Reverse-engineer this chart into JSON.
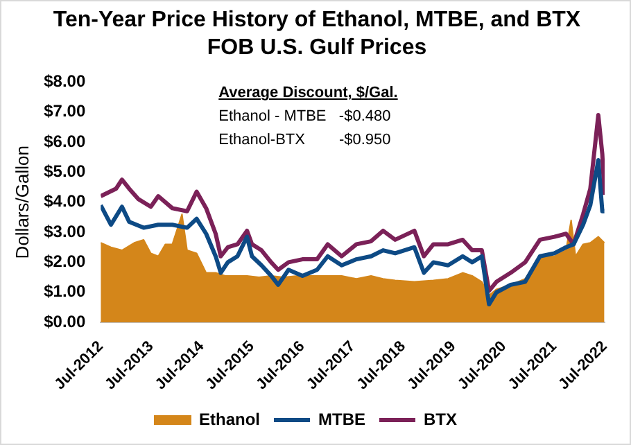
{
  "chart_data": {
    "type": "line",
    "title": "Ten-Year Price History of Ethanol, MTBE, and BTX FOB U.S. Gulf Prices",
    "ylabel": "Dollars/Gallon",
    "annotations": [
      "Average Discount, $/Gal.",
      "Ethanol - MTBE   -$0.480",
      "Ethanol-BTX        -$0.950"
    ],
    "xlim": [
      "2012-07-01",
      "2022-07-01"
    ],
    "xticks": [
      {
        "value": "2012-07-01",
        "label": "Jul-2012"
      },
      {
        "value": "2013-07-01",
        "label": "Jul-2013"
      },
      {
        "value": "2014-07-01",
        "label": "Jul-2014"
      },
      {
        "value": "2015-07-01",
        "label": "Jul-2015"
      },
      {
        "value": "2016-07-01",
        "label": "Jul-2016"
      },
      {
        "value": "2017-07-01",
        "label": "Jul-2017"
      },
      {
        "value": "2018-07-01",
        "label": "Jul-2018"
      },
      {
        "value": "2019-07-01",
        "label": "Jul-2019"
      },
      {
        "value": "2020-07-01",
        "label": "Jul-2020"
      },
      {
        "value": "2021-07-01",
        "label": "Jul-2021"
      },
      {
        "value": "2022-07-01",
        "label": "Jul-2022"
      }
    ],
    "ylim": [
      0,
      8
    ],
    "yticks": [
      {
        "value": 0,
        "label": "$0.00"
      },
      {
        "value": 1,
        "label": "$1.00"
      },
      {
        "value": 2,
        "label": "$2.00"
      },
      {
        "value": 3,
        "label": "$3.00"
      },
      {
        "value": 4,
        "label": "$4.00"
      },
      {
        "value": 5,
        "label": "$5.00"
      },
      {
        "value": 6,
        "label": "$6.00"
      },
      {
        "value": 7,
        "label": "$7.00"
      },
      {
        "value": 8,
        "label": "$8.00"
      }
    ],
    "grid": false,
    "legend": "bottom",
    "marker": "none",
    "series": [
      {
        "name": "Ethanol",
        "type": "area",
        "color": "#d4861a",
        "x": [
          "2012-07-01",
          "2012-09-13",
          "2012-12-02",
          "2013-03-01",
          "2013-05-08",
          "2013-06-29",
          "2013-08-22",
          "2013-10-12",
          "2013-12-02",
          "2014-02-10",
          "2014-03-19",
          "2014-05-27",
          "2014-08-04",
          "2014-10-12",
          "2014-12-20",
          "2015-03-01",
          "2015-05-27",
          "2015-08-22",
          "2015-11-18",
          "2016-02-14",
          "2016-05-31",
          "2016-10-16",
          "2017-01-01",
          "2017-04-12",
          "2017-07-28",
          "2017-11-11",
          "2018-02-06",
          "2018-05-05",
          "2018-09-21",
          "2019-02-06",
          "2019-05-23",
          "2019-09-06",
          "2019-11-14",
          "2020-01-23",
          "2020-03-15",
          "2020-05-08",
          "2020-08-19",
          "2020-12-02",
          "2021-03-19",
          "2021-07-02",
          "2021-09-24",
          "2021-10-31",
          "2021-12-02",
          "2022-01-26",
          "2022-03-19",
          "2022-05-16",
          "2022-06-29"
        ],
        "values": [
          2.65,
          2.5,
          2.4,
          2.65,
          2.75,
          2.3,
          2.2,
          2.6,
          2.6,
          3.6,
          2.4,
          2.3,
          1.65,
          1.65,
          1.55,
          1.55,
          1.55,
          1.5,
          1.55,
          1.5,
          1.55,
          1.55,
          1.55,
          1.55,
          1.45,
          1.55,
          1.45,
          1.4,
          1.35,
          1.4,
          1.45,
          1.65,
          1.55,
          1.35,
          0.9,
          1.1,
          1.25,
          1.45,
          2.2,
          2.2,
          2.4,
          3.4,
          2.2,
          2.6,
          2.65,
          2.85,
          2.65
        ]
      },
      {
        "name": "MTBE",
        "color": "#0d4a85",
        "x": [
          "2012-07-01",
          "2012-09-13",
          "2012-12-02",
          "2013-01-23",
          "2013-05-08",
          "2013-08-22",
          "2013-12-02",
          "2014-03-19",
          "2014-05-27",
          "2014-08-04",
          "2014-10-12",
          "2014-11-18",
          "2015-01-08",
          "2015-03-19",
          "2015-05-27",
          "2015-07-02",
          "2015-09-09",
          "2015-11-18",
          "2016-01-08",
          "2016-03-23",
          "2016-07-02",
          "2016-10-16",
          "2017-01-01",
          "2017-04-12",
          "2017-07-28",
          "2017-11-11",
          "2018-02-06",
          "2018-05-05",
          "2018-09-21",
          "2018-11-29",
          "2019-02-06",
          "2019-05-23",
          "2019-09-06",
          "2019-11-14",
          "2020-01-23",
          "2020-03-15",
          "2020-05-08",
          "2020-08-19",
          "2020-12-02",
          "2021-03-19",
          "2021-07-02",
          "2021-09-24",
          "2021-11-18",
          "2022-01-26",
          "2022-03-19",
          "2022-05-16",
          "2022-06-14",
          "2022-06-29"
        ],
        "values": [
          3.9,
          3.25,
          3.85,
          3.35,
          3.15,
          3.25,
          3.25,
          3.15,
          3.45,
          2.95,
          2.2,
          1.65,
          2.0,
          2.2,
          2.85,
          2.2,
          1.9,
          1.55,
          1.25,
          1.75,
          1.55,
          1.75,
          2.2,
          1.9,
          2.1,
          2.2,
          2.4,
          2.3,
          2.5,
          1.65,
          2.0,
          1.9,
          2.2,
          2.0,
          2.2,
          0.6,
          1.0,
          1.25,
          1.35,
          2.2,
          2.3,
          2.5,
          2.6,
          3.25,
          3.9,
          5.4,
          3.7,
          3.7
        ]
      },
      {
        "name": "BTX",
        "color": "#7b2158",
        "x": [
          "2012-07-01",
          "2012-10-20",
          "2012-12-02",
          "2013-01-23",
          "2013-04-01",
          "2013-06-29",
          "2013-08-22",
          "2013-12-02",
          "2014-03-19",
          "2014-05-27",
          "2014-08-04",
          "2014-10-12",
          "2014-11-18",
          "2015-01-08",
          "2015-03-19",
          "2015-05-27",
          "2015-07-02",
          "2015-09-09",
          "2015-11-18",
          "2016-01-08",
          "2016-03-23",
          "2016-07-02",
          "2016-10-16",
          "2017-01-01",
          "2017-04-12",
          "2017-07-28",
          "2017-11-11",
          "2018-02-06",
          "2018-05-05",
          "2018-09-21",
          "2018-11-29",
          "2019-02-06",
          "2019-05-23",
          "2019-09-06",
          "2019-11-14",
          "2020-01-23",
          "2020-03-15",
          "2020-05-08",
          "2020-08-19",
          "2020-12-02",
          "2021-03-19",
          "2021-07-02",
          "2021-09-24",
          "2021-11-18",
          "2022-01-26",
          "2022-03-19",
          "2022-05-16",
          "2022-06-14",
          "2022-06-29"
        ],
        "values": [
          4.2,
          4.45,
          4.75,
          4.45,
          4.1,
          3.85,
          4.2,
          3.8,
          3.7,
          4.35,
          3.8,
          2.95,
          2.2,
          2.5,
          2.6,
          3.05,
          2.6,
          2.4,
          2.0,
          1.75,
          2.0,
          2.1,
          2.1,
          2.6,
          2.2,
          2.6,
          2.7,
          3.05,
          2.75,
          3.05,
          2.2,
          2.6,
          2.6,
          2.75,
          2.4,
          2.4,
          1.05,
          1.35,
          1.65,
          2.0,
          2.75,
          2.85,
          2.95,
          2.6,
          3.6,
          4.45,
          6.9,
          5.6,
          4.25
        ]
      }
    ]
  }
}
